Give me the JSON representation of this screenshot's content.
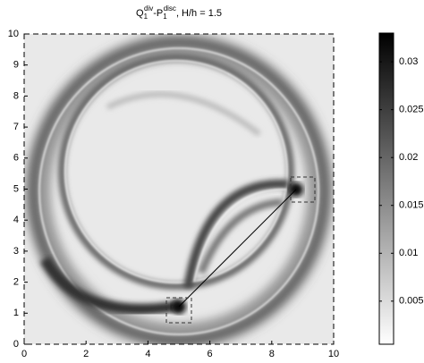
{
  "chart_data": {
    "type": "image",
    "title_parts": [
      "Q",
      "1",
      "div",
      "-P",
      "1",
      "disc",
      ", H/h = 1.5"
    ],
    "xlim": [
      0,
      10
    ],
    "xticks": [
      0,
      2,
      4,
      6,
      8,
      10
    ],
    "ylim": [
      0,
      10
    ],
    "yticks": [
      0,
      1,
      2,
      3,
      4,
      5,
      6,
      7,
      8,
      9,
      10
    ],
    "colormap": [
      "#ffffff",
      "#000000"
    ],
    "clim": [
      0.0005,
      0.033
    ],
    "cticks": [
      0.005,
      0.01,
      0.015,
      0.02,
      0.025,
      0.03
    ]
  }
}
